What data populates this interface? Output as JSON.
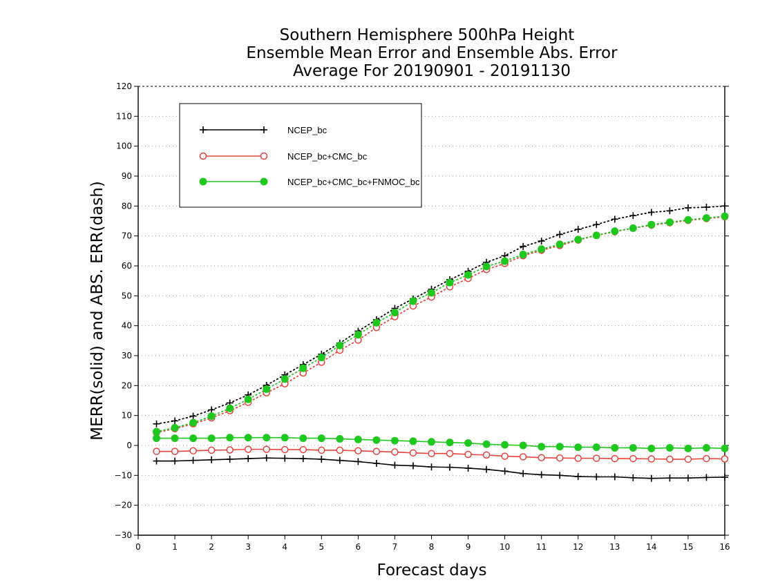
{
  "chart_data": {
    "type": "line",
    "title": [
      "Southern Hemisphere 500hPa Height",
      "Ensemble Mean Error and Ensemble Abs. Error",
      "Average For 20190901 - 20191130"
    ],
    "xlabel": "Forecast days",
    "ylabel": "MERR(solid) and ABS. ERR(dash)",
    "xlim": [
      0,
      16
    ],
    "ylim": [
      -30,
      120
    ],
    "xticks": [
      0,
      1,
      2,
      3,
      4,
      5,
      6,
      7,
      8,
      9,
      10,
      11,
      12,
      13,
      14,
      15,
      16
    ],
    "yticks": [
      -30,
      -20,
      -10,
      0,
      10,
      20,
      30,
      40,
      50,
      60,
      70,
      80,
      90,
      100,
      110,
      120
    ],
    "grid": true,
    "legend_position": "top-left",
    "x": [
      0.5,
      1,
      1.5,
      2,
      2.5,
      3,
      3.5,
      4,
      4.5,
      5,
      5.5,
      6,
      6.5,
      7,
      7.5,
      8,
      8.5,
      9,
      9.5,
      10,
      10.5,
      11,
      11.5,
      12,
      12.5,
      13,
      13.5,
      14,
      14.5,
      15,
      15.5,
      16
    ],
    "series": [
      {
        "name": "NCEP_bc",
        "color": "#000000",
        "marker": "plus",
        "merr": [
          -5.2,
          -5.2,
          -5.0,
          -4.8,
          -4.6,
          -4.4,
          -4.2,
          -4.3,
          -4.4,
          -4.6,
          -5.0,
          -5.4,
          -6.0,
          -6.6,
          -6.8,
          -7.2,
          -7.3,
          -7.6,
          -8.0,
          -8.6,
          -9.4,
          -9.8,
          -10.0,
          -10.4,
          -10.5,
          -10.5,
          -10.8,
          -11.0,
          -10.9,
          -10.9,
          -10.7,
          -10.6
        ],
        "abs_err": [
          7.2,
          8.2,
          9.8,
          11.9,
          14.2,
          16.9,
          20.1,
          23.6,
          27.0,
          30.5,
          34.2,
          38.2,
          42.0,
          45.8,
          49.0,
          52.2,
          55.4,
          58.2,
          61.2,
          63.4,
          66.5,
          68.3,
          70.5,
          72.2,
          73.8,
          75.6,
          76.8,
          77.9,
          78.4,
          79.4,
          79.6,
          80.0
        ]
      },
      {
        "name": "NCEP_bc+CMC_bc",
        "color": "#e8413a",
        "marker": "open-circle",
        "merr": [
          -2.0,
          -2.0,
          -1.8,
          -1.6,
          -1.5,
          -1.3,
          -1.3,
          -1.4,
          -1.4,
          -1.6,
          -1.6,
          -1.8,
          -2.0,
          -2.2,
          -2.5,
          -2.7,
          -2.7,
          -3.0,
          -3.2,
          -3.6,
          -3.8,
          -4.1,
          -4.2,
          -4.3,
          -4.3,
          -4.4,
          -4.4,
          -4.5,
          -4.6,
          -4.6,
          -4.4,
          -4.5
        ],
        "abs_err": [
          4.3,
          5.6,
          7.2,
          9.2,
          11.6,
          14.4,
          17.6,
          20.6,
          24.2,
          27.8,
          31.8,
          35.2,
          39.4,
          43.0,
          46.6,
          49.6,
          53.0,
          55.8,
          58.8,
          60.8,
          63.4,
          65.2,
          66.8,
          68.6,
          70.2,
          71.4,
          72.6,
          73.6,
          74.4,
          75.2,
          75.8,
          76.4
        ]
      },
      {
        "name": "NCEP_bc+CMC_bc+FNMOC_bc",
        "color": "#1ec81e",
        "marker": "filled-circle",
        "merr": [
          2.4,
          2.4,
          2.4,
          2.4,
          2.6,
          2.6,
          2.6,
          2.6,
          2.4,
          2.4,
          2.2,
          2.0,
          1.8,
          1.6,
          1.4,
          1.2,
          1.0,
          0.8,
          0.4,
          0.2,
          0.0,
          -0.4,
          -0.4,
          -0.6,
          -0.6,
          -0.8,
          -0.8,
          -1.0,
          -0.8,
          -1.0,
          -0.8,
          -1.0
        ],
        "abs_err": [
          4.6,
          5.9,
          7.6,
          9.8,
          12.4,
          15.4,
          18.8,
          22.2,
          25.8,
          29.4,
          33.4,
          37.0,
          41.0,
          44.4,
          48.2,
          51.0,
          54.4,
          57.0,
          59.8,
          61.6,
          63.8,
          65.6,
          67.2,
          68.8,
          70.2,
          71.6,
          72.6,
          73.8,
          74.6,
          75.4,
          76.0,
          76.6
        ]
      }
    ]
  }
}
